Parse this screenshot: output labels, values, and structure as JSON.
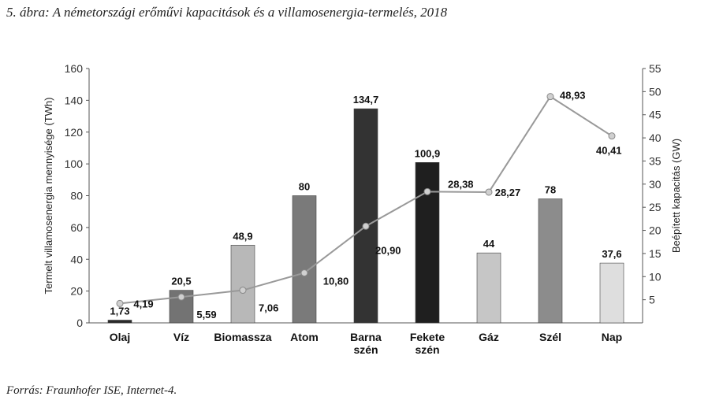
{
  "title": "5. ábra: A németországi erőművi kapacitások és a villamosenergia-termelés, 2018",
  "source": "Forrás: Fraunhofer ISE, Internet-4.",
  "chart_data": {
    "type": "bar",
    "categories": [
      [
        "Olaj"
      ],
      [
        "Víz"
      ],
      [
        "Biomassza"
      ],
      [
        "Atom"
      ],
      [
        "Barna",
        "szén"
      ],
      [
        "Fekete",
        "szén"
      ],
      [
        "Gáz"
      ],
      [
        "Szél"
      ],
      [
        "Nap"
      ]
    ],
    "ylabel": "Termelt villamosenergia mennyisége (TWh)",
    "y2label": "Beépített kapacitás (GW)",
    "ylim": [
      0,
      160
    ],
    "y2lim": [
      0,
      55
    ],
    "yticks": [
      0,
      20,
      40,
      60,
      80,
      100,
      120,
      140,
      160
    ],
    "y2ticks": [
      5,
      10,
      15,
      20,
      25,
      30,
      35,
      40,
      45,
      50,
      55
    ],
    "grid": false,
    "series": [
      {
        "kind": "bar",
        "values": [
          1.73,
          20.5,
          48.9,
          80,
          134.7,
          100.9,
          44,
          78,
          37.6
        ],
        "labels": [
          "1,73",
          "20,5",
          "48,9",
          "80",
          "134,7",
          "100,9",
          "44",
          "78",
          "37,6"
        ],
        "colors": [
          "#2a2a2a",
          "#737373",
          "#b8b8b8",
          "#7a7a7a",
          "#333333",
          "#1f1f1f",
          "#c6c6c6",
          "#8c8c8c",
          "#dedede"
        ]
      },
      {
        "kind": "line",
        "axis": "right",
        "values": [
          4.19,
          5.59,
          7.06,
          10.8,
          20.9,
          28.38,
          28.27,
          48.93,
          40.41
        ],
        "labels": [
          "4,19",
          "5,59",
          "7,06",
          "10,80",
          "20,90",
          "28,38",
          "28,27",
          "48,93",
          "40,41"
        ],
        "color": "#999999"
      }
    ]
  }
}
